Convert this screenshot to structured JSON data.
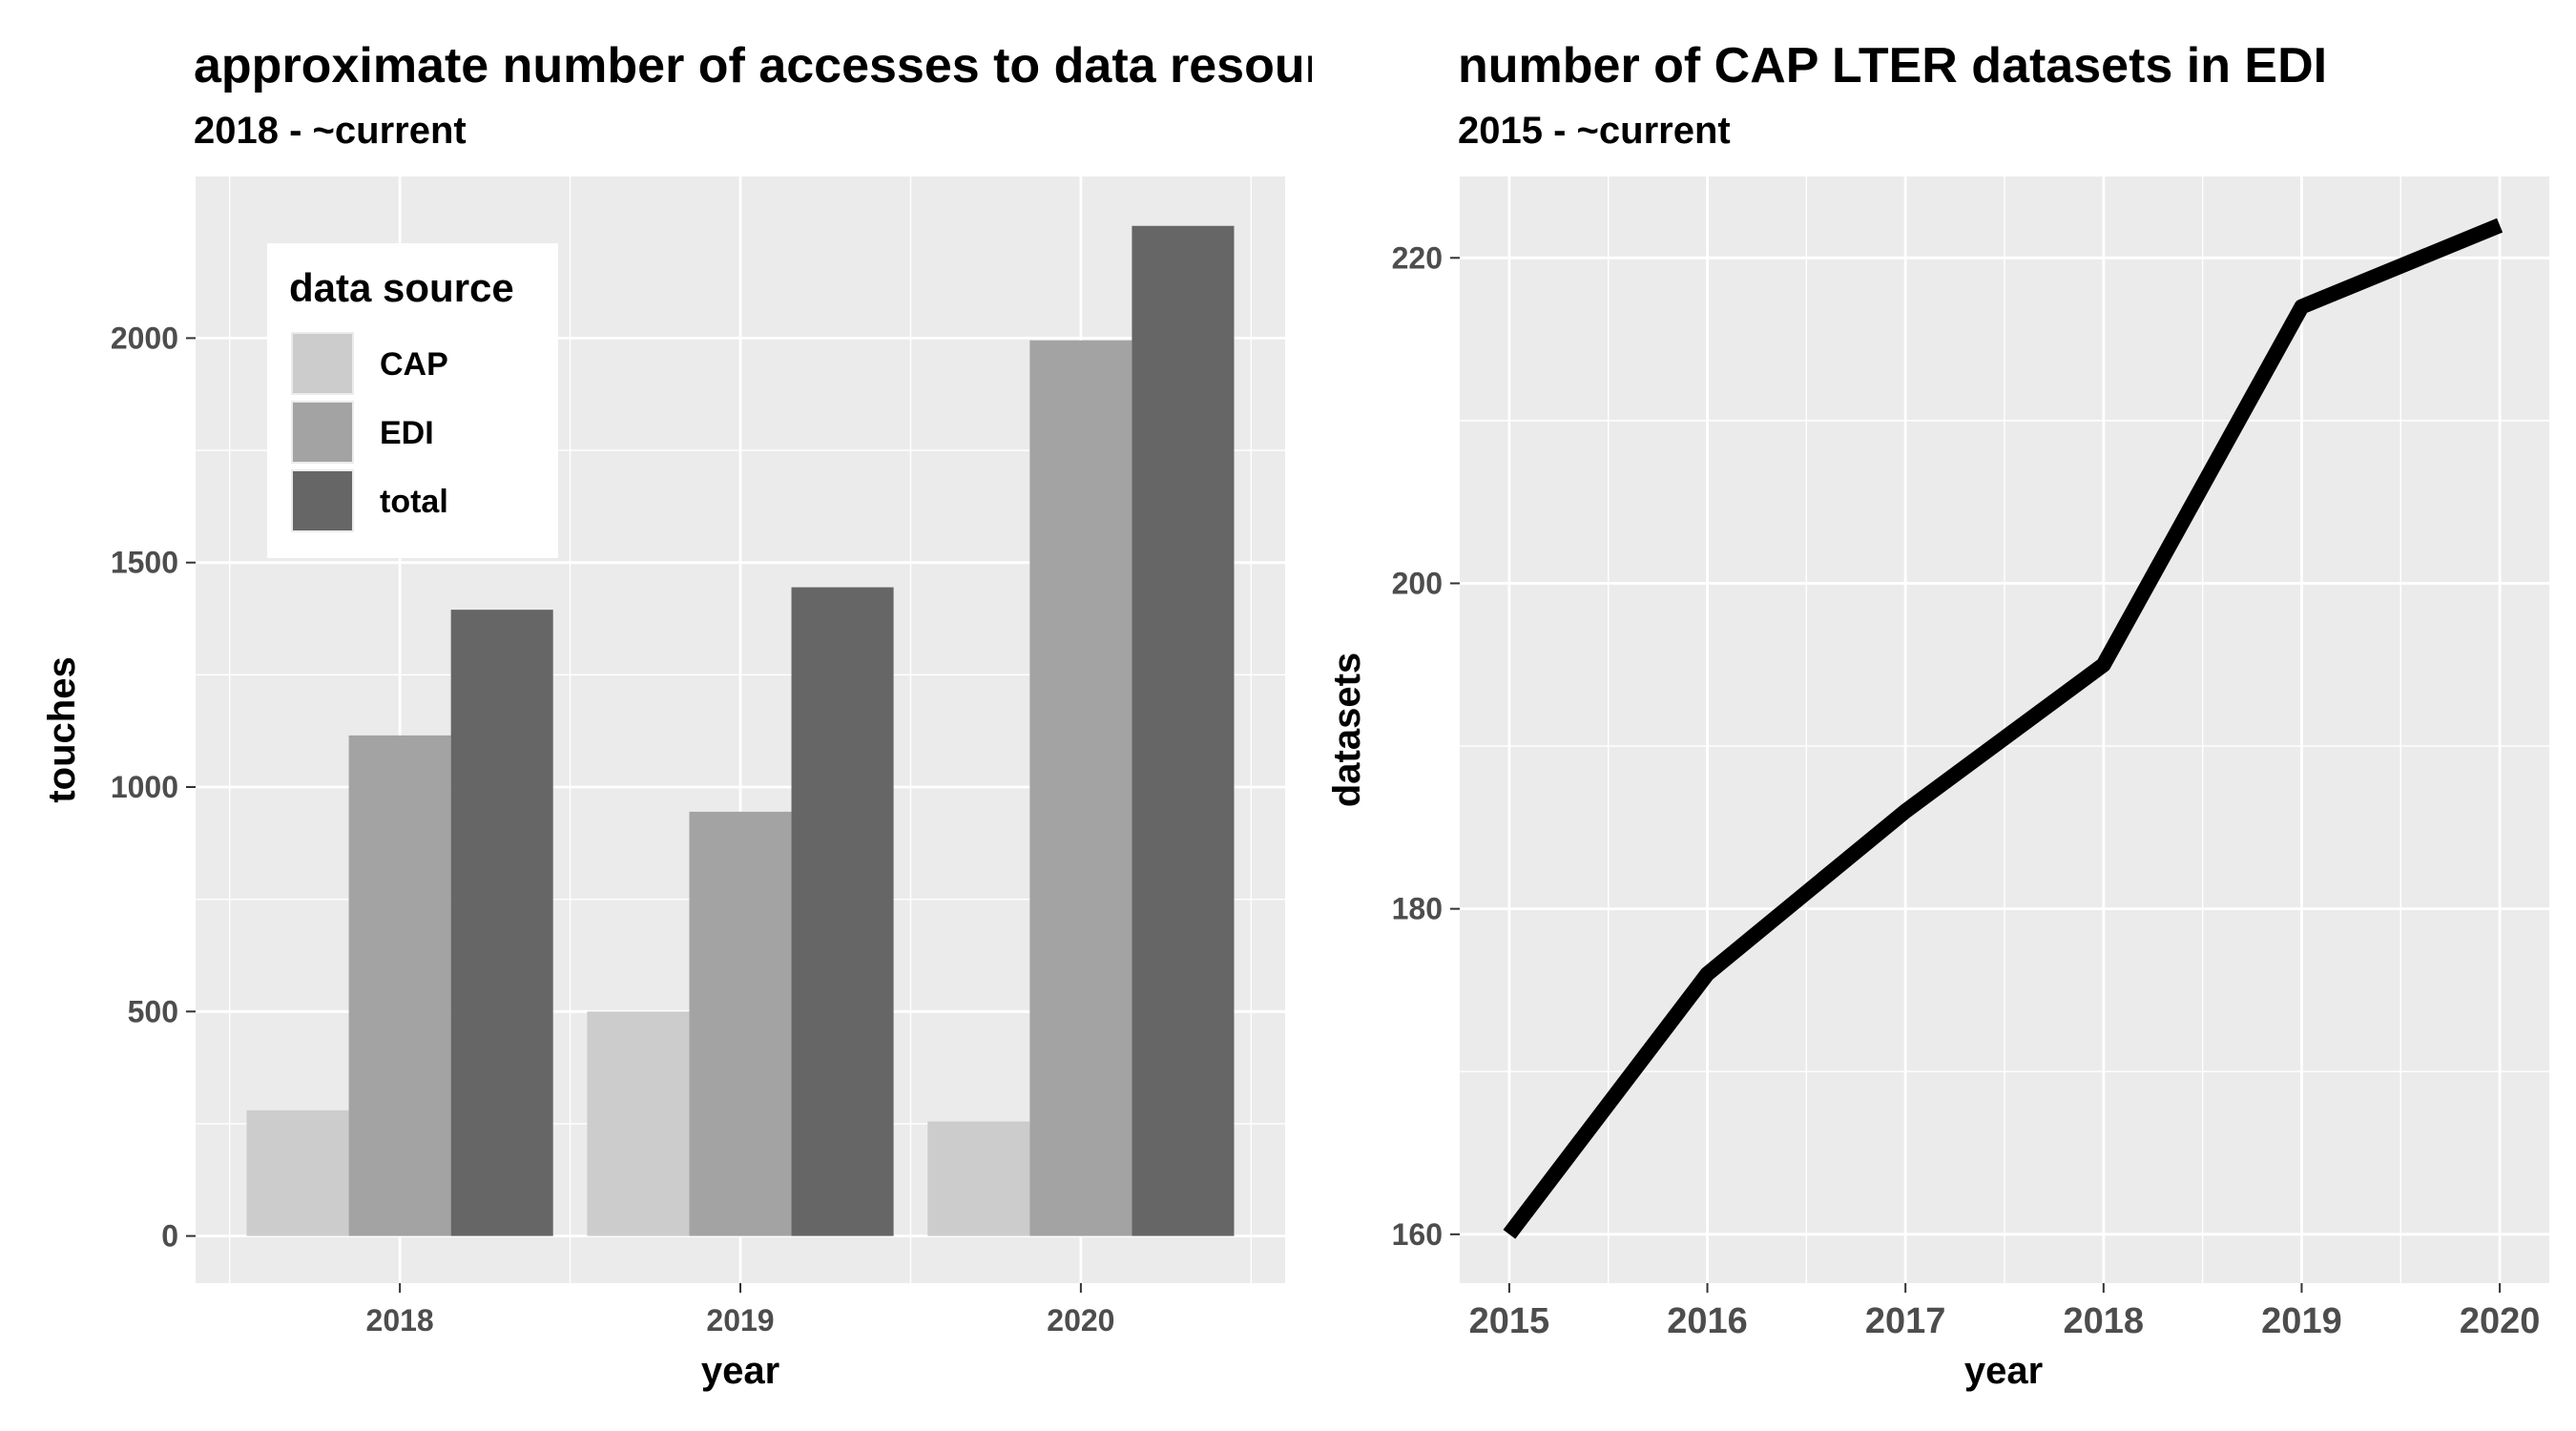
{
  "chart_data": [
    {
      "type": "bar",
      "title": "approximate number of accesses to data resources",
      "subtitle": "2018 - ~current",
      "xlabel": "year",
      "ylabel": "touches",
      "categories": [
        "2018",
        "2019",
        "2020"
      ],
      "series": [
        {
          "name": "CAP",
          "color": "#cccccc",
          "values": [
            280,
            500,
            255
          ]
        },
        {
          "name": "EDI",
          "color": "#a3a3a3",
          "values": [
            1115,
            945,
            1995
          ]
        },
        {
          "name": "total",
          "color": "#666666",
          "values": [
            1395,
            1445,
            2250
          ]
        }
      ],
      "ylim": [
        -105,
        2360
      ],
      "yticks": [
        0,
        500,
        1000,
        1500,
        2000
      ],
      "ytick_labels": [
        "0",
        "500",
        "1000",
        "1500",
        "2000"
      ],
      "legend": {
        "title": "data source",
        "position": "top-left"
      },
      "grid": true
    },
    {
      "type": "line",
      "title": "number of CAP LTER datasets in EDI",
      "subtitle": "2015 - ~current",
      "xlabel": "year",
      "ylabel": "datasets",
      "x": [
        2015,
        2016,
        2017,
        2018,
        2019,
        2020
      ],
      "series": [
        {
          "color": "#000000",
          "values": [
            160,
            176,
            186,
            195,
            217,
            222
          ]
        }
      ],
      "xlim": [
        2014.75,
        2020.25
      ],
      "ylim": [
        157,
        225
      ],
      "xticks": [
        2015,
        2016,
        2017,
        2018,
        2019,
        2020
      ],
      "xtick_labels": [
        "2015",
        "2016",
        "2017",
        "2018",
        "2019",
        "2020"
      ],
      "yticks": [
        160,
        180,
        200,
        220
      ],
      "ytick_labels": [
        "160",
        "180",
        "200",
        "220"
      ],
      "grid": true
    }
  ]
}
